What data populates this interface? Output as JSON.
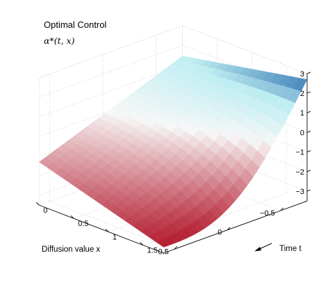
{
  "chart_data": {
    "type": "surface",
    "title": "Optimal Control",
    "subtitle": "α*(t, x)",
    "xlabel": "Diffusion value x",
    "ylabel": "Time t",
    "x_axis": {
      "range": [
        -0.75,
        0.6
      ],
      "ticks": [
        -0.5,
        0,
        0.5
      ],
      "tick_labels": [
        "−0.5",
        "0",
        "0.5"
      ]
    },
    "t_axis": {
      "range": [
        0,
        1.8
      ],
      "ticks": [
        0,
        0.5,
        1,
        1.5
      ],
      "tick_labels": [
        "0",
        "0.5",
        "1",
        "1.5"
      ]
    },
    "z_axis": {
      "range": [
        -3.5,
        3
      ],
      "ticks": [
        3,
        2,
        1,
        0,
        -1,
        -2,
        -3
      ],
      "tick_labels": [
        "3",
        "2",
        "1",
        "0",
        "−1",
        "−2",
        "−3"
      ]
    },
    "grid": true,
    "colormap": {
      "low": "#b2182b",
      "mid": "#f7f7f7",
      "high": "#2166ac",
      "cyan": "#bfeef2"
    },
    "corners": [
      {
        "x": -0.75,
        "t": 1.8,
        "z": 2.7
      },
      {
        "x": -0.75,
        "t": 0,
        "z": 1.45
      },
      {
        "x": 0.6,
        "t": 0,
        "z": -1.3
      },
      {
        "x": 0.6,
        "t": 1.8,
        "z": -3.2
      }
    ]
  },
  "time_arrow_icon": "arrow-icon"
}
